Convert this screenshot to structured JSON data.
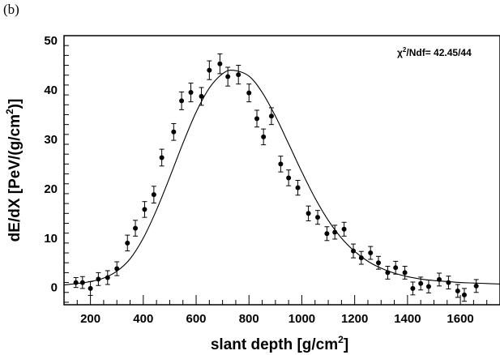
{
  "panel_label": "(b)",
  "chart_data": {
    "type": "scatter",
    "title": "",
    "xlabel": "slant depth [g/cm",
    "xlabel_sup": "2",
    "xlabel_tail": "]",
    "ylabel": "dE/dX [PeV/(g/cm",
    "ylabel_sup": "2",
    "ylabel_tail": ")]",
    "xlim": [
      100,
      1750
    ],
    "ylim": [
      -3.5,
      51
    ],
    "x_ticks": [
      200,
      400,
      600,
      800,
      1000,
      1200,
      1400,
      1600
    ],
    "y_ticks": [
      0,
      10,
      20,
      30,
      40,
      50
    ],
    "annotation": {
      "label": "χ",
      "sup": "2",
      "rest": "/Ndf=  42.45/44"
    },
    "points": [
      {
        "x": 145,
        "y": 1.0,
        "err": 1.0
      },
      {
        "x": 170,
        "y": 1.0,
        "err": 1.2
      },
      {
        "x": 200,
        "y": -0.2,
        "err": 1.4
      },
      {
        "x": 230,
        "y": 1.7,
        "err": 1.3
      },
      {
        "x": 265,
        "y": 2.0,
        "err": 1.4
      },
      {
        "x": 300,
        "y": 3.8,
        "err": 1.4
      },
      {
        "x": 340,
        "y": 9.0,
        "err": 1.6
      },
      {
        "x": 370,
        "y": 12.0,
        "err": 1.6
      },
      {
        "x": 405,
        "y": 15.8,
        "err": 1.6
      },
      {
        "x": 440,
        "y": 18.8,
        "err": 1.7
      },
      {
        "x": 470,
        "y": 26.3,
        "err": 1.7
      },
      {
        "x": 515,
        "y": 31.5,
        "err": 1.7
      },
      {
        "x": 545,
        "y": 37.8,
        "err": 1.8
      },
      {
        "x": 580,
        "y": 39.5,
        "err": 1.9
      },
      {
        "x": 620,
        "y": 38.7,
        "err": 1.8
      },
      {
        "x": 650,
        "y": 44.0,
        "err": 1.9
      },
      {
        "x": 690,
        "y": 45.3,
        "err": 2.0
      },
      {
        "x": 720,
        "y": 42.7,
        "err": 1.9
      },
      {
        "x": 760,
        "y": 43.1,
        "err": 1.9
      },
      {
        "x": 800,
        "y": 39.4,
        "err": 1.8
      },
      {
        "x": 830,
        "y": 34.2,
        "err": 1.7
      },
      {
        "x": 855,
        "y": 30.5,
        "err": 1.6
      },
      {
        "x": 885,
        "y": 34.7,
        "err": 1.7
      },
      {
        "x": 920,
        "y": 25.0,
        "err": 1.6
      },
      {
        "x": 950,
        "y": 22.2,
        "err": 1.6
      },
      {
        "x": 985,
        "y": 20.2,
        "err": 1.5
      },
      {
        "x": 1025,
        "y": 15.0,
        "err": 1.5
      },
      {
        "x": 1060,
        "y": 14.2,
        "err": 1.4
      },
      {
        "x": 1095,
        "y": 10.9,
        "err": 1.4
      },
      {
        "x": 1125,
        "y": 11.2,
        "err": 1.4
      },
      {
        "x": 1160,
        "y": 11.8,
        "err": 1.4
      },
      {
        "x": 1195,
        "y": 7.4,
        "err": 1.4
      },
      {
        "x": 1225,
        "y": 6.0,
        "err": 1.3
      },
      {
        "x": 1260,
        "y": 7.0,
        "err": 1.3
      },
      {
        "x": 1290,
        "y": 5.0,
        "err": 1.3
      },
      {
        "x": 1325,
        "y": 3.0,
        "err": 1.3
      },
      {
        "x": 1355,
        "y": 4.0,
        "err": 1.3
      },
      {
        "x": 1390,
        "y": 3.0,
        "err": 1.3
      },
      {
        "x": 1420,
        "y": -0.2,
        "err": 1.3
      },
      {
        "x": 1450,
        "y": 0.8,
        "err": 1.3
      },
      {
        "x": 1480,
        "y": 0.2,
        "err": 1.3
      },
      {
        "x": 1520,
        "y": 1.6,
        "err": 1.3
      },
      {
        "x": 1555,
        "y": 1.0,
        "err": 1.3
      },
      {
        "x": 1590,
        "y": -0.7,
        "err": 1.3
      },
      {
        "x": 1615,
        "y": -1.5,
        "err": 1.3
      },
      {
        "x": 1660,
        "y": 0.3,
        "err": 1.3
      }
    ],
    "fit_curve": {
      "x": [
        100,
        150,
        200,
        250,
        300,
        350,
        400,
        450,
        500,
        550,
        600,
        650,
        700,
        740,
        800,
        850,
        900,
        950,
        1000,
        1050,
        1100,
        1150,
        1200,
        1250,
        1300,
        1350,
        1400,
        1450,
        1500,
        1550,
        1600,
        1650,
        1700,
        1750
      ],
      "y": [
        0.5,
        0.8,
        1.2,
        1.9,
        3.3,
        5.8,
        10.0,
        15.7,
        22.3,
        29.2,
        35.5,
        40.4,
        43.3,
        44.0,
        42.8,
        39.5,
        34.7,
        29.1,
        23.4,
        18.1,
        13.6,
        10.0,
        7.3,
        5.3,
        3.9,
        2.9,
        2.2,
        1.7,
        1.4,
        1.2,
        1.0,
        0.9,
        0.8,
        0.7
      ]
    },
    "grid": false,
    "legend": "none"
  }
}
